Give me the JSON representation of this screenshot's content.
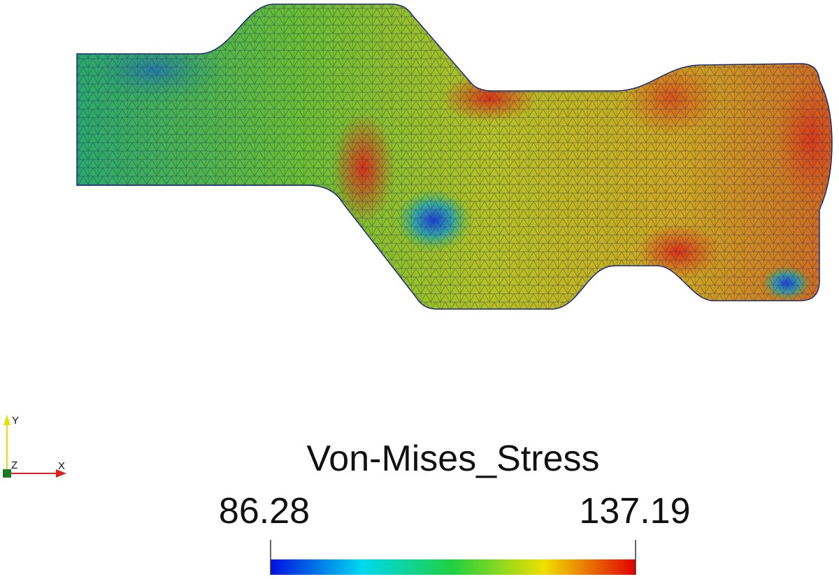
{
  "legend": {
    "title": "Von-Mises_Stress",
    "min_label": "86.28",
    "max_label": "137.19"
  },
  "axes_triad": {
    "y": "Y",
    "z": "Z",
    "x": "X"
  }
}
